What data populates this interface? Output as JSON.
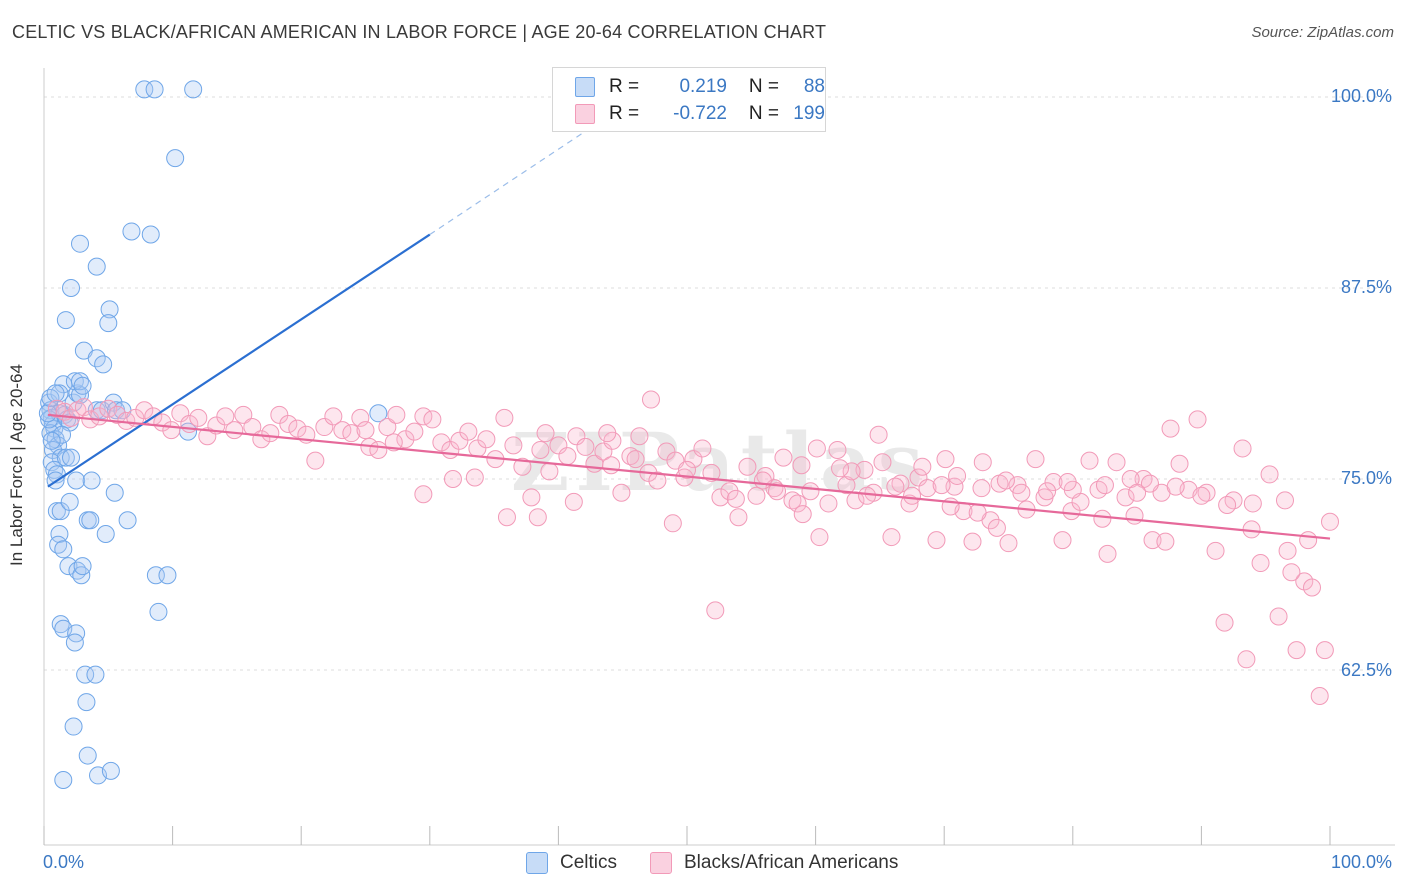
{
  "title": "CELTIC VS BLACK/AFRICAN AMERICAN IN LABOR FORCE | AGE 20-64 CORRELATION CHART",
  "source": "Source: ZipAtlas.com",
  "watermark": "ZIPatlas",
  "legend": {
    "row1": {
      "r_label": "R =",
      "r_value": "0.219",
      "n_label": "N =",
      "n_value": "88"
    },
    "row2": {
      "r_label": "R =",
      "r_value": "-0.722",
      "n_label": "N =",
      "n_value": "199"
    }
  },
  "colors": {
    "blue": "#6fa6e8",
    "blue_line": "#2b6fd1",
    "pink": "#f29ab8",
    "pink_line": "#e6699a",
    "axis_text": "#3b78c3"
  },
  "chart_data": {
    "type": "scatter",
    "title": "CELTIC VS BLACK/AFRICAN AMERICAN IN LABOR FORCE | AGE 20-64 CORRELATION CHART",
    "xlabel": "",
    "ylabel": "In Labor Force | Age 20-64",
    "xlim": [
      0,
      100
    ],
    "ylim": [
      50,
      102
    ],
    "x_tick_labels": [
      "0.0%",
      "100.0%"
    ],
    "y_tick_labels": [
      "100.0%",
      "87.5%",
      "75.0%",
      "62.5%"
    ],
    "y_ticks": [
      100.0,
      87.5,
      75.0,
      62.5
    ],
    "legend_placement": "bottom-center",
    "series": [
      {
        "name": "Celtics",
        "color": "#6fa6e8",
        "r": 0.219,
        "n": 88,
        "trend": {
          "x0": 0.3,
          "y0": 74.5,
          "x1": 30.0,
          "y1": 91.0,
          "dash_x1": 42.0,
          "dash_y1": 97.7
        },
        "points": [
          [
            0.4,
            80.0
          ],
          [
            0.5,
            79.5
          ],
          [
            0.6,
            79.0
          ],
          [
            0.7,
            78.6
          ],
          [
            0.8,
            78.3
          ],
          [
            0.5,
            78.0
          ],
          [
            0.9,
            77.6
          ],
          [
            1.1,
            77.2
          ],
          [
            0.7,
            76.9
          ],
          [
            1.3,
            76.4
          ],
          [
            0.6,
            76.1
          ],
          [
            0.8,
            75.6
          ],
          [
            1.0,
            75.3
          ],
          [
            0.9,
            74.9
          ],
          [
            1.2,
            79.3
          ],
          [
            1.6,
            79.2
          ],
          [
            1.8,
            78.9
          ],
          [
            2.0,
            78.7
          ],
          [
            2.3,
            80.0
          ],
          [
            2.6,
            80.6
          ],
          [
            1.5,
            81.2
          ],
          [
            2.8,
            80.5
          ],
          [
            2.4,
            81.4
          ],
          [
            1.4,
            77.9
          ],
          [
            1.7,
            76.4
          ],
          [
            2.1,
            76.4
          ],
          [
            2.5,
            74.9
          ],
          [
            3.7,
            74.9
          ],
          [
            4.1,
            79.5
          ],
          [
            4.5,
            79.5
          ],
          [
            5.4,
            80.0
          ],
          [
            5.6,
            79.5
          ],
          [
            6.1,
            79.5
          ],
          [
            1.0,
            72.9
          ],
          [
            1.3,
            72.9
          ],
          [
            2.0,
            73.5
          ],
          [
            3.4,
            72.3
          ],
          [
            3.6,
            72.3
          ],
          [
            4.8,
            71.4
          ],
          [
            5.5,
            74.1
          ],
          [
            6.5,
            72.3
          ],
          [
            1.2,
            71.4
          ],
          [
            1.1,
            70.7
          ],
          [
            1.5,
            70.4
          ],
          [
            1.9,
            69.3
          ],
          [
            2.6,
            69.0
          ],
          [
            2.9,
            68.7
          ],
          [
            3.0,
            69.3
          ],
          [
            8.7,
            68.7
          ],
          [
            9.6,
            68.7
          ],
          [
            8.9,
            66.3
          ],
          [
            1.3,
            65.5
          ],
          [
            1.5,
            65.2
          ],
          [
            2.5,
            64.9
          ],
          [
            2.4,
            64.3
          ],
          [
            3.2,
            62.2
          ],
          [
            4.0,
            62.2
          ],
          [
            3.3,
            60.4
          ],
          [
            2.3,
            58.8
          ],
          [
            3.4,
            56.9
          ],
          [
            4.2,
            55.6
          ],
          [
            5.2,
            55.9
          ],
          [
            1.5,
            55.3
          ],
          [
            7.8,
            100.5
          ],
          [
            8.6,
            100.5
          ],
          [
            11.6,
            100.5
          ],
          [
            10.2,
            96.0
          ],
          [
            6.8,
            91.2
          ],
          [
            8.3,
            91.0
          ],
          [
            2.8,
            90.4
          ],
          [
            4.1,
            88.9
          ],
          [
            2.1,
            87.5
          ],
          [
            5.1,
            86.1
          ],
          [
            5.0,
            85.2
          ],
          [
            1.7,
            85.4
          ],
          [
            3.1,
            83.4
          ],
          [
            4.1,
            82.9
          ],
          [
            4.6,
            82.5
          ],
          [
            2.8,
            81.4
          ],
          [
            11.2,
            78.1
          ],
          [
            26.0,
            79.3
          ],
          [
            3.0,
            81.1
          ],
          [
            0.6,
            77.5
          ],
          [
            1.2,
            80.6
          ],
          [
            0.4,
            78.9
          ],
          [
            0.3,
            79.3
          ],
          [
            0.5,
            80.3
          ],
          [
            0.9,
            80.6
          ]
        ]
      },
      {
        "name": "Blacks/African Americans",
        "color": "#f29ab8",
        "r": -0.722,
        "n": 199,
        "trend": {
          "x0": 0.3,
          "y0": 79.2,
          "x1": 100.0,
          "y1": 71.1
        },
        "points": [
          [
            1.0,
            79.6
          ],
          [
            1.6,
            79.4
          ],
          [
            2.1,
            79.0
          ],
          [
            2.6,
            79.5
          ],
          [
            3.1,
            79.7
          ],
          [
            3.6,
            78.9
          ],
          [
            4.3,
            79.1
          ],
          [
            5.0,
            79.6
          ],
          [
            5.7,
            79.2
          ],
          [
            6.4,
            78.8
          ],
          [
            7.1,
            79.0
          ],
          [
            7.8,
            79.5
          ],
          [
            8.5,
            79.1
          ],
          [
            9.2,
            78.7
          ],
          [
            9.9,
            78.2
          ],
          [
            10.6,
            79.3
          ],
          [
            11.3,
            78.6
          ],
          [
            12.0,
            79.0
          ],
          [
            12.7,
            77.8
          ],
          [
            13.4,
            78.5
          ],
          [
            14.1,
            79.1
          ],
          [
            14.8,
            78.2
          ],
          [
            15.5,
            79.2
          ],
          [
            16.2,
            78.4
          ],
          [
            16.9,
            77.6
          ],
          [
            17.6,
            78.0
          ],
          [
            18.3,
            79.2
          ],
          [
            19.0,
            78.6
          ],
          [
            19.7,
            78.3
          ],
          [
            20.4,
            77.9
          ],
          [
            21.1,
            76.2
          ],
          [
            21.8,
            78.4
          ],
          [
            22.5,
            79.1
          ],
          [
            23.2,
            78.2
          ],
          [
            23.9,
            78.0
          ],
          [
            24.6,
            79.0
          ],
          [
            25.3,
            77.1
          ],
          [
            26.0,
            76.9
          ],
          [
            26.7,
            78.4
          ],
          [
            27.4,
            79.2
          ],
          [
            28.1,
            77.6
          ],
          [
            28.8,
            78.1
          ],
          [
            29.5,
            79.1
          ],
          [
            30.2,
            78.9
          ],
          [
            30.9,
            77.4
          ],
          [
            31.6,
            76.9
          ],
          [
            32.3,
            77.5
          ],
          [
            33.0,
            78.1
          ],
          [
            33.7,
            77.0
          ],
          [
            34.4,
            77.6
          ],
          [
            35.1,
            76.3
          ],
          [
            35.8,
            79.0
          ],
          [
            36.5,
            77.2
          ],
          [
            37.2,
            75.8
          ],
          [
            37.9,
            73.8
          ],
          [
            38.6,
            76.9
          ],
          [
            39.3,
            75.5
          ],
          [
            40.0,
            77.2
          ],
          [
            40.7,
            76.5
          ],
          [
            41.4,
            77.8
          ],
          [
            42.1,
            77.1
          ],
          [
            42.8,
            76.0
          ],
          [
            43.5,
            76.8
          ],
          [
            44.2,
            77.5
          ],
          [
            44.9,
            74.1
          ],
          [
            45.6,
            76.5
          ],
          [
            46.3,
            77.8
          ],
          [
            47.0,
            75.4
          ],
          [
            47.7,
            74.9
          ],
          [
            48.4,
            76.8
          ],
          [
            49.1,
            76.2
          ],
          [
            49.8,
            75.1
          ],
          [
            50.5,
            76.3
          ],
          [
            51.2,
            77.0
          ],
          [
            51.9,
            75.4
          ],
          [
            52.6,
            73.8
          ],
          [
            53.3,
            74.2
          ],
          [
            54.0,
            72.5
          ],
          [
            54.7,
            75.8
          ],
          [
            55.4,
            73.9
          ],
          [
            56.1,
            75.2
          ],
          [
            56.8,
            74.4
          ],
          [
            57.5,
            76.4
          ],
          [
            58.2,
            73.6
          ],
          [
            58.9,
            75.9
          ],
          [
            59.6,
            74.2
          ],
          [
            60.3,
            71.2
          ],
          [
            61.0,
            73.4
          ],
          [
            61.7,
            76.9
          ],
          [
            62.4,
            74.6
          ],
          [
            63.1,
            73.6
          ],
          [
            63.8,
            75.6
          ],
          [
            64.5,
            74.1
          ],
          [
            65.2,
            76.1
          ],
          [
            65.9,
            71.2
          ],
          [
            66.6,
            74.7
          ],
          [
            67.3,
            73.4
          ],
          [
            68.0,
            75.1
          ],
          [
            68.7,
            74.4
          ],
          [
            69.4,
            71.0
          ],
          [
            70.1,
            76.3
          ],
          [
            70.8,
            74.5
          ],
          [
            71.5,
            72.9
          ],
          [
            72.2,
            70.9
          ],
          [
            72.9,
            74.4
          ],
          [
            73.6,
            72.3
          ],
          [
            74.3,
            74.7
          ],
          [
            75.0,
            70.8
          ],
          [
            75.7,
            74.6
          ],
          [
            76.4,
            73.0
          ],
          [
            77.1,
            76.3
          ],
          [
            77.8,
            73.8
          ],
          [
            78.5,
            74.8
          ],
          [
            79.2,
            71.0
          ],
          [
            79.9,
            72.9
          ],
          [
            80.6,
            73.5
          ],
          [
            81.3,
            76.2
          ],
          [
            82.0,
            74.3
          ],
          [
            82.7,
            70.1
          ],
          [
            83.4,
            76.1
          ],
          [
            84.1,
            73.8
          ],
          [
            84.8,
            72.6
          ],
          [
            85.5,
            75.0
          ],
          [
            86.2,
            71.0
          ],
          [
            86.9,
            74.1
          ],
          [
            87.6,
            78.3
          ],
          [
            88.3,
            76.0
          ],
          [
            89.0,
            74.3
          ],
          [
            89.7,
            78.9
          ],
          [
            90.4,
            74.1
          ],
          [
            91.1,
            70.3
          ],
          [
            91.8,
            65.6
          ],
          [
            92.5,
            73.6
          ],
          [
            93.2,
            77.0
          ],
          [
            93.9,
            71.7
          ],
          [
            94.6,
            69.5
          ],
          [
            95.3,
            75.3
          ],
          [
            96.0,
            66.0
          ],
          [
            96.7,
            70.3
          ],
          [
            97.4,
            63.8
          ],
          [
            98.0,
            68.3
          ],
          [
            98.6,
            67.9
          ],
          [
            99.2,
            60.8
          ],
          [
            99.6,
            63.8
          ],
          [
            100.0,
            72.2
          ],
          [
            41.2,
            73.5
          ],
          [
            44.1,
            75.9
          ],
          [
            48.9,
            72.1
          ],
          [
            52.2,
            66.4
          ],
          [
            53.8,
            73.7
          ],
          [
            57.0,
            74.2
          ],
          [
            58.6,
            73.4
          ],
          [
            60.1,
            77.0
          ],
          [
            62.8,
            75.5
          ],
          [
            64.0,
            73.9
          ],
          [
            66.2,
            74.5
          ],
          [
            68.3,
            75.8
          ],
          [
            69.8,
            74.6
          ],
          [
            71.0,
            75.2
          ],
          [
            73.0,
            76.1
          ],
          [
            74.8,
            74.9
          ],
          [
            76.0,
            74.1
          ],
          [
            78.0,
            74.2
          ],
          [
            80.0,
            74.3
          ],
          [
            82.5,
            74.6
          ],
          [
            84.5,
            75.0
          ],
          [
            86.0,
            74.7
          ],
          [
            88.0,
            74.5
          ],
          [
            90.0,
            73.9
          ],
          [
            92.0,
            73.3
          ],
          [
            94.0,
            73.4
          ],
          [
            96.5,
            73.6
          ],
          [
            98.3,
            71.0
          ],
          [
            36.0,
            72.5
          ],
          [
            38.4,
            72.5
          ],
          [
            31.8,
            75.0
          ],
          [
            33.5,
            75.1
          ],
          [
            29.5,
            74.0
          ],
          [
            27.2,
            77.4
          ],
          [
            25.0,
            78.2
          ],
          [
            46.0,
            76.3
          ],
          [
            47.2,
            80.2
          ],
          [
            39.0,
            78.0
          ],
          [
            43.8,
            78.0
          ],
          [
            50.0,
            75.6
          ],
          [
            55.9,
            74.9
          ],
          [
            59.0,
            72.7
          ],
          [
            61.9,
            75.7
          ],
          [
            64.9,
            77.9
          ],
          [
            67.5,
            73.9
          ],
          [
            70.5,
            73.2
          ],
          [
            72.6,
            72.8
          ],
          [
            74.1,
            71.8
          ],
          [
            79.6,
            74.8
          ],
          [
            82.3,
            72.4
          ],
          [
            85.0,
            74.1
          ],
          [
            87.2,
            70.9
          ],
          [
            93.5,
            63.2
          ],
          [
            97.0,
            68.9
          ]
        ]
      }
    ]
  },
  "bottom_legend": {
    "series1": "Celtics",
    "series2": "Blacks/African Americans"
  }
}
